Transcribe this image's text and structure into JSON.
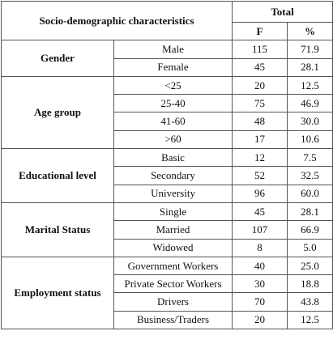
{
  "header": {
    "title": "Socio-demographic characteristics",
    "total": "Total",
    "f": "F",
    "pct": "%"
  },
  "groups": [
    {
      "label": "Gender",
      "rows": [
        [
          "Male",
          "115",
          "71.9"
        ],
        [
          "Female",
          "45",
          "28.1"
        ]
      ]
    },
    {
      "label": "Age group",
      "rows": [
        [
          "<25",
          "20",
          "12.5"
        ],
        [
          "25-40",
          "75",
          "46.9"
        ],
        [
          "41-60",
          "48",
          "30.0"
        ],
        [
          ">60",
          "17",
          "10.6"
        ]
      ]
    },
    {
      "label": "Educational level",
      "rows": [
        [
          "Basic",
          "12",
          "7.5"
        ],
        [
          "Secondary",
          "52",
          "32.5"
        ],
        [
          "University",
          "96",
          "60.0"
        ]
      ]
    },
    {
      "label": "Marital Status",
      "rows": [
        [
          "Single",
          "45",
          "28.1"
        ],
        [
          "Married",
          "107",
          "66.9"
        ],
        [
          "Widowed",
          "8",
          "5.0"
        ]
      ]
    },
    {
      "label": "Employment status",
      "rows": [
        [
          "Government Workers",
          "40",
          "25.0"
        ],
        [
          "Private Sector Workers",
          "30",
          "18.8"
        ],
        [
          "Drivers",
          "70",
          "43.8"
        ],
        [
          "Business/Traders",
          "20",
          "12.5"
        ]
      ]
    }
  ]
}
